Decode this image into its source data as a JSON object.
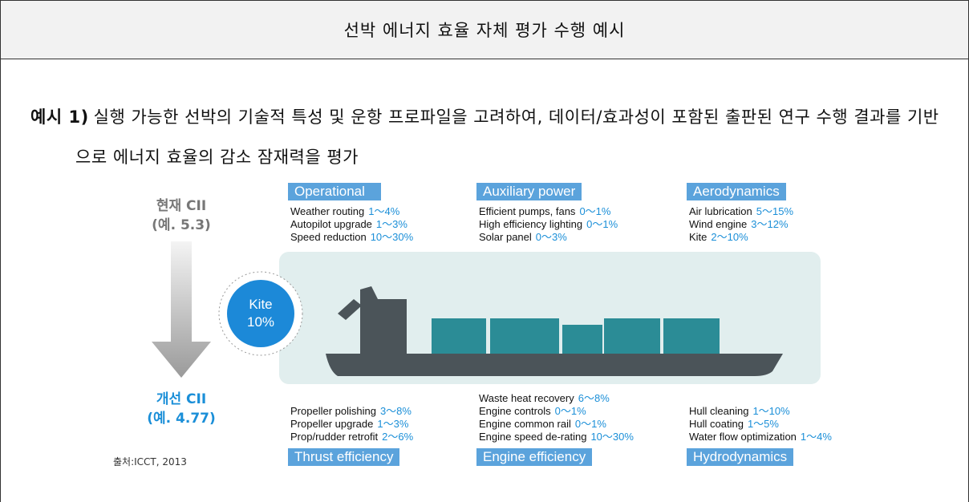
{
  "header": {
    "title": "선박 에너지 효율 자체 평가 수행 예시"
  },
  "example": {
    "label": "예시 1)",
    "text": "실행 가능한 선박의 기술적 특성 및 운항 프로파일을 고려하여, 데이터/효과성이 포함된 출판된 연구 수행 결과를 기반으로 에너지 효율의 감소 잠재력을 평가"
  },
  "figure": {
    "current": {
      "label": "현재 CII",
      "value": "(예. 5.3)"
    },
    "improved": {
      "label": "개선 CII",
      "value": "(예. 4.77)"
    },
    "badge": {
      "label": "Kite",
      "value": "10%"
    },
    "source": "출처:ICCT, 2013",
    "groups": [
      {
        "title": "Operational",
        "items": [
          {
            "name": "Weather routing",
            "range": "1～4%"
          },
          {
            "name": "Autopilot upgrade",
            "range": "1～3%"
          },
          {
            "name": "Speed reduction",
            "range": "10～30%"
          }
        ]
      },
      {
        "title": "Auxiliary power",
        "items": [
          {
            "name": "Efficient pumps, fans",
            "range": "0～1%"
          },
          {
            "name": "High efficiency lighting",
            "range": "0～1%"
          },
          {
            "name": "Solar panel",
            "range": "0～3%"
          }
        ]
      },
      {
        "title": "Aerodynamics",
        "items": [
          {
            "name": "Air lubrication",
            "range": "5～15%"
          },
          {
            "name": "Wind engine",
            "range": "3～12%"
          },
          {
            "name": "Kite",
            "range": "2～10%"
          }
        ]
      },
      {
        "title": "Thrust efficiency",
        "items": [
          {
            "name": "Propeller polishing",
            "range": "3～8%"
          },
          {
            "name": "Propeller upgrade",
            "range": "1～3%"
          },
          {
            "name": "Prop/rudder retrofit",
            "range": "2～6%"
          }
        ]
      },
      {
        "title": "Engine efficiency",
        "items": [
          {
            "name": "Waste heat recovery",
            "range": "6～8%"
          },
          {
            "name": "Engine controls",
            "range": "0～1%"
          },
          {
            "name": "Engine common rail",
            "range": "0～1%"
          },
          {
            "name": "Engine speed de-rating",
            "range": "10～30%"
          }
        ]
      },
      {
        "title": "Hydrodynamics",
        "items": [
          {
            "name": "Hull cleaning",
            "range": "1～10%"
          },
          {
            "name": "Hull coating",
            "range": "1～5%"
          },
          {
            "name": "Water flow optimization",
            "range": "1～4%"
          }
        ]
      }
    ]
  }
}
